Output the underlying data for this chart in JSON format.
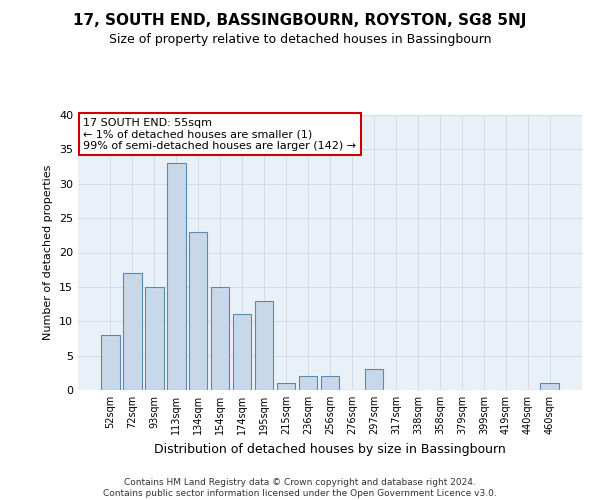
{
  "title1": "17, SOUTH END, BASSINGBOURN, ROYSTON, SG8 5NJ",
  "title2": "Size of property relative to detached houses in Bassingbourn",
  "xlabel": "Distribution of detached houses by size in Bassingbourn",
  "ylabel": "Number of detached properties",
  "categories": [
    "52sqm",
    "72sqm",
    "93sqm",
    "113sqm",
    "134sqm",
    "154sqm",
    "174sqm",
    "195sqm",
    "215sqm",
    "236sqm",
    "256sqm",
    "276sqm",
    "297sqm",
    "317sqm",
    "338sqm",
    "358sqm",
    "379sqm",
    "399sqm",
    "419sqm",
    "440sqm",
    "460sqm"
  ],
  "values": [
    8,
    17,
    15,
    33,
    23,
    15,
    11,
    13,
    1,
    2,
    2,
    0,
    3,
    0,
    0,
    0,
    0,
    0,
    0,
    0,
    1
  ],
  "bar_color": "#c8d8e8",
  "bar_edge_color": "#5a8ab0",
  "ylim": [
    0,
    40
  ],
  "yticks": [
    0,
    5,
    10,
    15,
    20,
    25,
    30,
    35,
    40
  ],
  "annotation_text": "17 SOUTH END: 55sqm\n← 1% of detached houses are smaller (1)\n99% of semi-detached houses are larger (142) →",
  "annotation_box_color": "#ffffff",
  "annotation_box_edge": "#cc0000",
  "grid_color": "#d0dce8",
  "background_color": "#eaf0f8",
  "footer_line1": "Contains HM Land Registry data © Crown copyright and database right 2024.",
  "footer_line2": "Contains public sector information licensed under the Open Government Licence v3.0."
}
